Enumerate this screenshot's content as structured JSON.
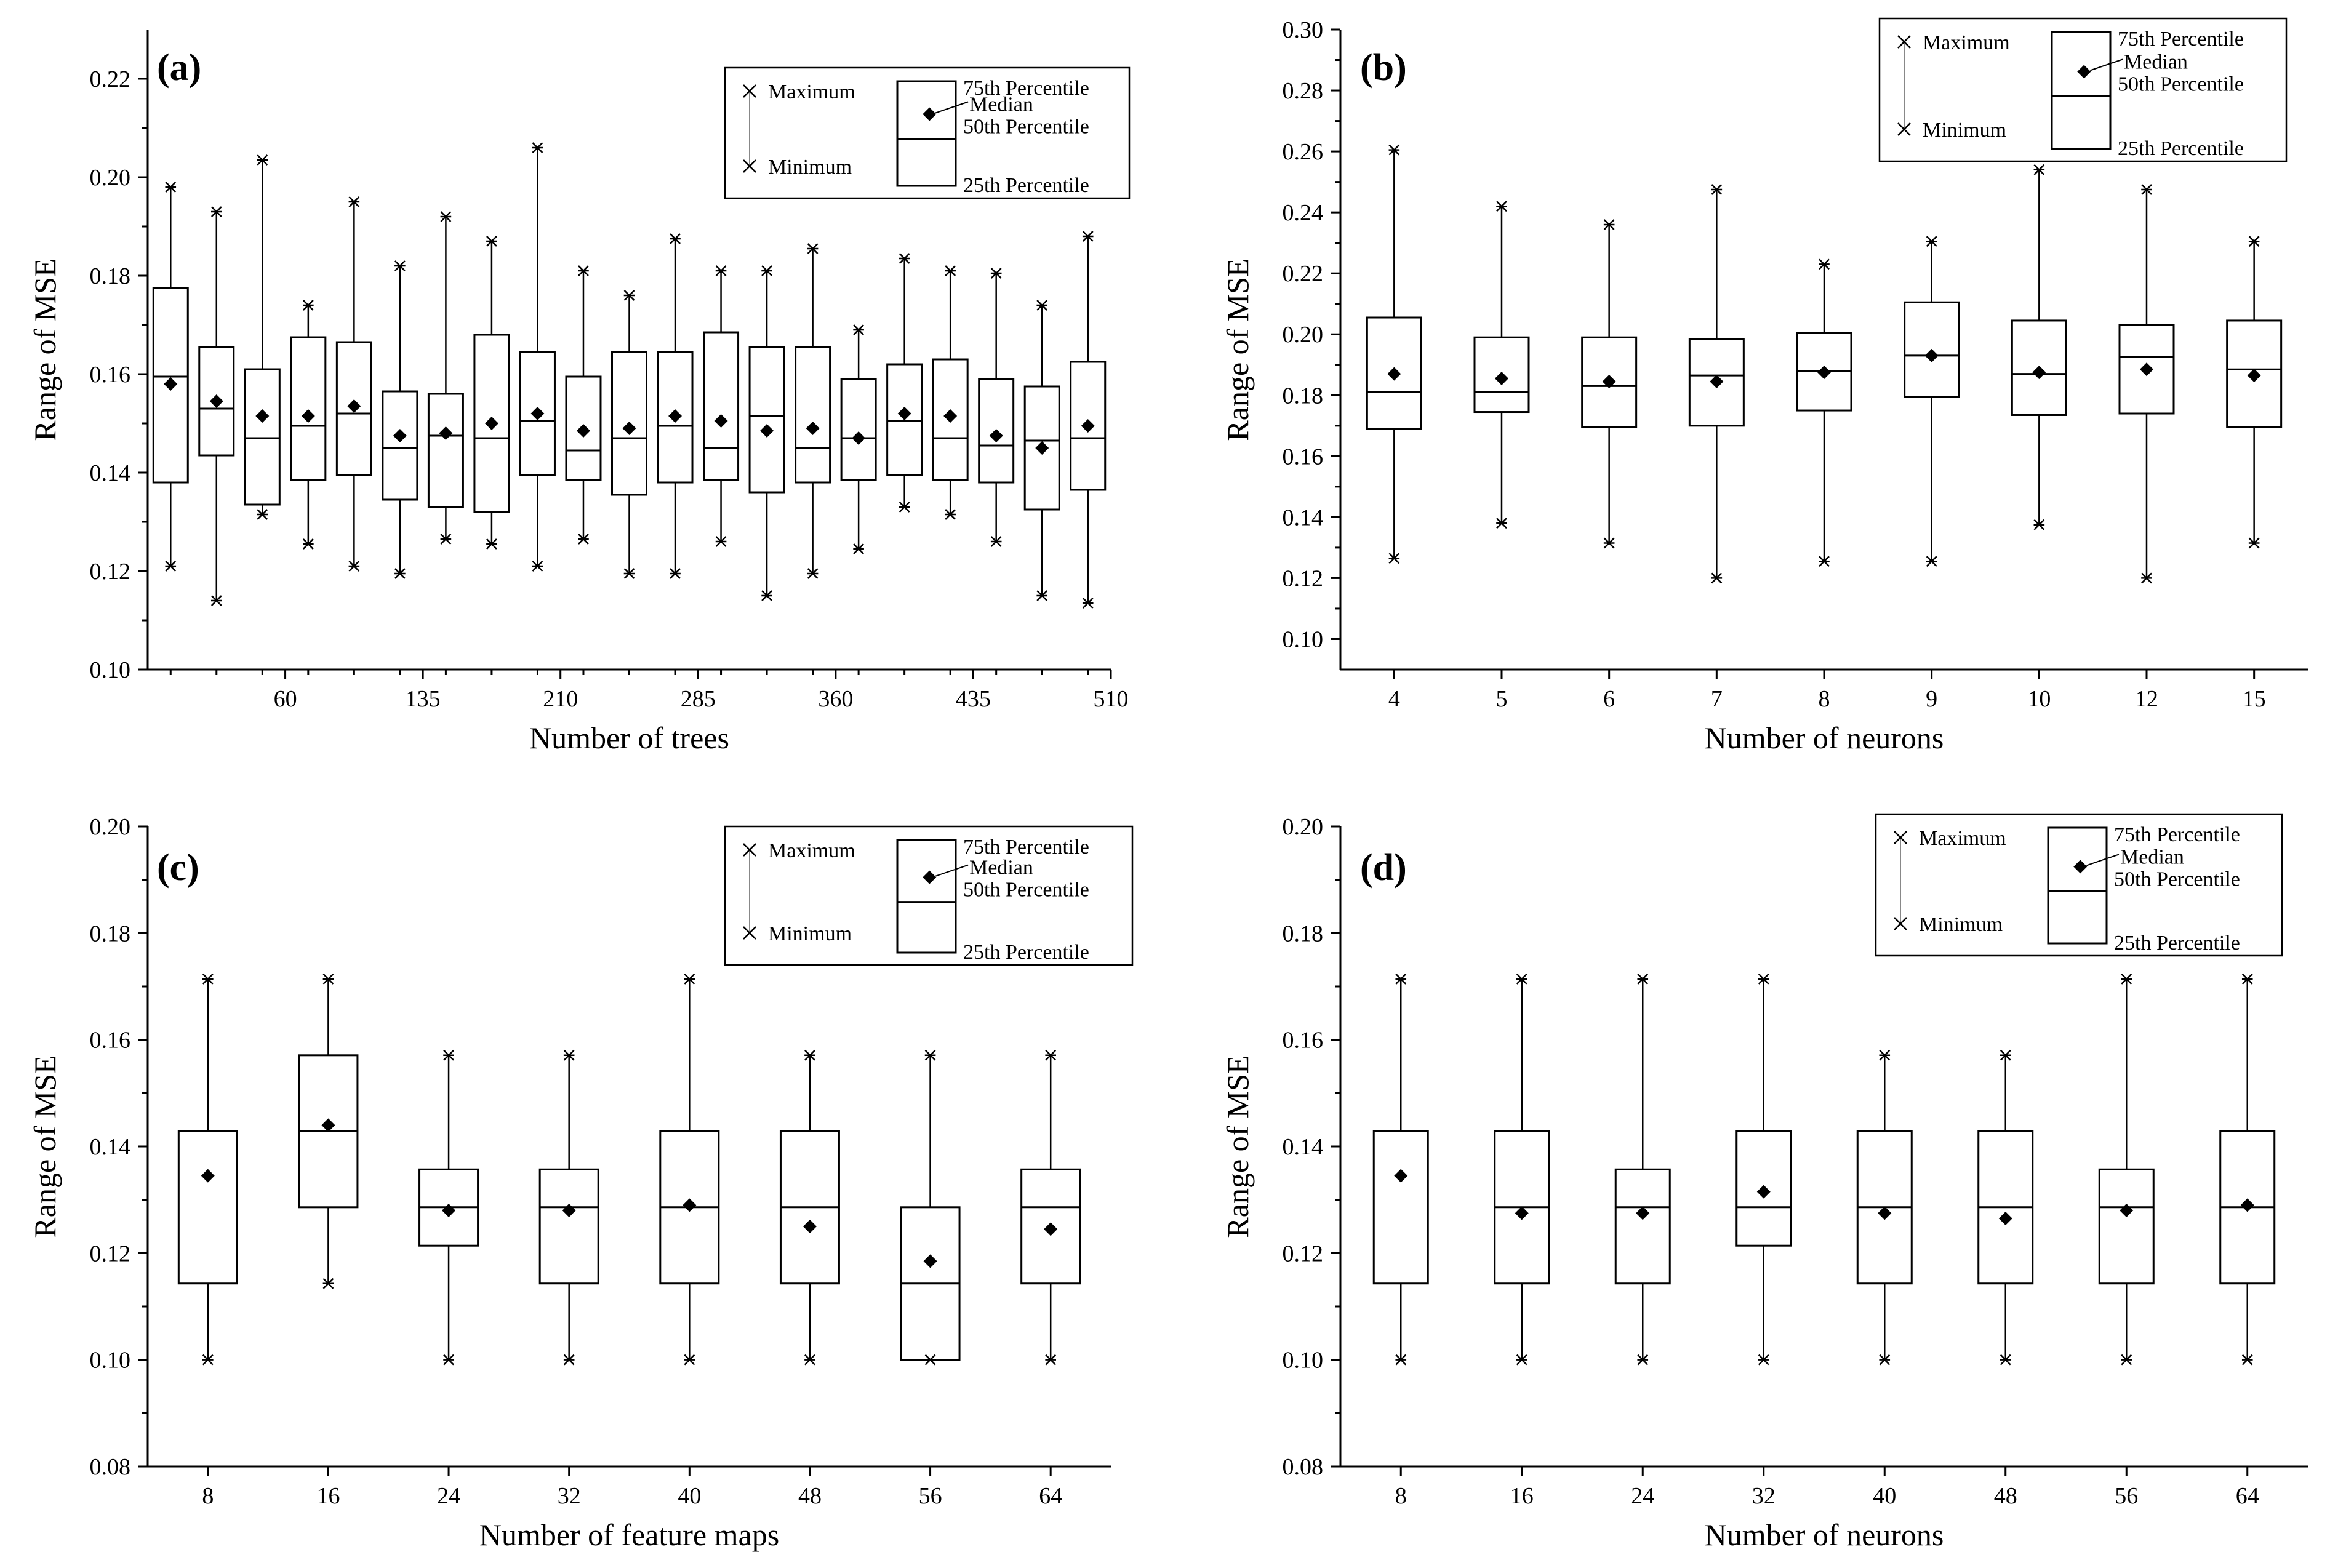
{
  "chart_data": [
    {
      "id": "a",
      "panel_label": "(a)",
      "type": "box",
      "xlabel": "Number of trees",
      "ylabel": "Range of MSE",
      "ylim": [
        0.1,
        0.23
      ],
      "yticks": [
        "0.10",
        "0.12",
        "0.14",
        "0.16",
        "0.18",
        "0.20",
        "0.22"
      ],
      "xtick_labels": [
        {
          "at": 3,
          "label": "60"
        },
        {
          "at": 6,
          "label": "135"
        },
        {
          "at": 9,
          "label": "210"
        },
        {
          "at": 12,
          "label": "285"
        },
        {
          "at": 15,
          "label": "360"
        },
        {
          "at": 18,
          "label": "435"
        },
        {
          "at": 21,
          "label": "510"
        }
      ],
      "boxes": [
        {
          "min": 0.121,
          "q1": 0.138,
          "median": 0.1595,
          "q3": 0.1775,
          "max": 0.198,
          "mean": 0.158
        },
        {
          "min": 0.114,
          "q1": 0.1435,
          "median": 0.153,
          "q3": 0.1655,
          "max": 0.193,
          "mean": 0.1545
        },
        {
          "min": 0.1315,
          "q1": 0.1335,
          "median": 0.147,
          "q3": 0.161,
          "max": 0.2035,
          "mean": 0.1515
        },
        {
          "min": 0.1255,
          "q1": 0.1385,
          "median": 0.1495,
          "q3": 0.1675,
          "max": 0.174,
          "mean": 0.1515
        },
        {
          "min": 0.121,
          "q1": 0.1395,
          "median": 0.152,
          "q3": 0.1665,
          "max": 0.195,
          "mean": 0.1535
        },
        {
          "min": 0.1195,
          "q1": 0.1345,
          "median": 0.145,
          "q3": 0.1565,
          "max": 0.182,
          "mean": 0.1475
        },
        {
          "min": 0.1265,
          "q1": 0.133,
          "median": 0.1475,
          "q3": 0.156,
          "max": 0.192,
          "mean": 0.148
        },
        {
          "min": 0.1255,
          "q1": 0.132,
          "median": 0.147,
          "q3": 0.168,
          "max": 0.187,
          "mean": 0.15
        },
        {
          "min": 0.121,
          "q1": 0.1395,
          "median": 0.1505,
          "q3": 0.1645,
          "max": 0.206,
          "mean": 0.152
        },
        {
          "min": 0.1265,
          "q1": 0.1385,
          "median": 0.1445,
          "q3": 0.1595,
          "max": 0.181,
          "mean": 0.1485
        },
        {
          "min": 0.1195,
          "q1": 0.1355,
          "median": 0.147,
          "q3": 0.1645,
          "max": 0.176,
          "mean": 0.149
        },
        {
          "min": 0.1195,
          "q1": 0.138,
          "median": 0.1495,
          "q3": 0.1645,
          "max": 0.1875,
          "mean": 0.1515
        },
        {
          "min": 0.126,
          "q1": 0.1385,
          "median": 0.145,
          "q3": 0.1685,
          "max": 0.181,
          "mean": 0.1505
        },
        {
          "min": 0.115,
          "q1": 0.136,
          "median": 0.1515,
          "q3": 0.1655,
          "max": 0.181,
          "mean": 0.1485
        },
        {
          "min": 0.1195,
          "q1": 0.138,
          "median": 0.145,
          "q3": 0.1655,
          "max": 0.1855,
          "mean": 0.149
        },
        {
          "min": 0.1245,
          "q1": 0.1385,
          "median": 0.147,
          "q3": 0.159,
          "max": 0.169,
          "mean": 0.147
        },
        {
          "min": 0.133,
          "q1": 0.1395,
          "median": 0.1505,
          "q3": 0.162,
          "max": 0.1835,
          "mean": 0.152
        },
        {
          "min": 0.1315,
          "q1": 0.1385,
          "median": 0.147,
          "q3": 0.163,
          "max": 0.181,
          "mean": 0.1515
        },
        {
          "min": 0.126,
          "q1": 0.138,
          "median": 0.1455,
          "q3": 0.159,
          "max": 0.1805,
          "mean": 0.1475
        },
        {
          "min": 0.115,
          "q1": 0.1325,
          "median": 0.1465,
          "q3": 0.1575,
          "max": 0.174,
          "mean": 0.145
        },
        {
          "min": 0.1135,
          "q1": 0.1365,
          "median": 0.147,
          "q3": 0.1625,
          "max": 0.188,
          "mean": 0.1495
        }
      ],
      "legend": {
        "maximum": "Maximum",
        "minimum": "Minimum",
        "p75": "75th Percentile",
        "median": "Median",
        "p50": "50th Percentile",
        "p25": "25th Percentile"
      }
    },
    {
      "id": "b",
      "panel_label": "(b)",
      "type": "box",
      "xlabel": "Number of neurons",
      "ylabel": "Range of MSE",
      "ylim": [
        0.09,
        0.3
      ],
      "yticks": [
        "0.10",
        "0.12",
        "0.14",
        "0.16",
        "0.18",
        "0.20",
        "0.22",
        "0.24",
        "0.26",
        "0.28",
        "0.30"
      ],
      "categories": [
        "4",
        "5",
        "6",
        "7",
        "8",
        "9",
        "10",
        "12",
        "15"
      ],
      "boxes": [
        {
          "min": 0.1265,
          "q1": 0.169,
          "median": 0.181,
          "q3": 0.2055,
          "max": 0.2605,
          "mean": 0.187
        },
        {
          "min": 0.138,
          "q1": 0.1745,
          "median": 0.181,
          "q3": 0.199,
          "max": 0.242,
          "mean": 0.1855
        },
        {
          "min": 0.1315,
          "q1": 0.1695,
          "median": 0.183,
          "q3": 0.199,
          "max": 0.236,
          "mean": 0.1845
        },
        {
          "min": 0.12,
          "q1": 0.17,
          "median": 0.1865,
          "q3": 0.1985,
          "max": 0.2475,
          "mean": 0.1845
        },
        {
          "min": 0.1255,
          "q1": 0.175,
          "median": 0.188,
          "q3": 0.2005,
          "max": 0.223,
          "mean": 0.1875
        },
        {
          "min": 0.1255,
          "q1": 0.1795,
          "median": 0.193,
          "q3": 0.2105,
          "max": 0.2305,
          "mean": 0.193
        },
        {
          "min": 0.1375,
          "q1": 0.1735,
          "median": 0.187,
          "q3": 0.2045,
          "max": 0.254,
          "mean": 0.1875
        },
        {
          "min": 0.12,
          "q1": 0.174,
          "median": 0.1925,
          "q3": 0.203,
          "max": 0.2475,
          "mean": 0.1885
        },
        {
          "min": 0.1315,
          "q1": 0.1695,
          "median": 0.1885,
          "q3": 0.2045,
          "max": 0.2305,
          "mean": 0.1865
        }
      ],
      "legend": {
        "maximum": "Maximum",
        "minimum": "Minimum",
        "p75": "75th Percentile",
        "median": "Median",
        "p50": "50th Percentile",
        "p25": "25th Percentile"
      }
    },
    {
      "id": "c",
      "panel_label": "(c)",
      "type": "box",
      "xlabel": "Number of feature maps",
      "ylabel": "Range of MSE",
      "ylim": [
        0.08,
        0.2
      ],
      "yticks": [
        "0.08",
        "0.10",
        "0.12",
        "0.14",
        "0.16",
        "0.18",
        "0.20"
      ],
      "categories": [
        "8",
        "16",
        "24",
        "32",
        "40",
        "48",
        "56",
        "64"
      ],
      "boxes": [
        {
          "min": 0.1,
          "q1": 0.1143,
          "median": null,
          "q3": 0.1429,
          "max": 0.1714,
          "mean": 0.1345
        },
        {
          "min": 0.1143,
          "q1": 0.1286,
          "median": 0.1429,
          "q3": 0.1571,
          "max": 0.1714,
          "mean": 0.144
        },
        {
          "min": 0.1,
          "q1": 0.1214,
          "median": 0.1286,
          "q3": 0.1357,
          "max": 0.1571,
          "mean": 0.128
        },
        {
          "min": 0.1,
          "q1": 0.1143,
          "median": 0.1286,
          "q3": 0.1357,
          "max": 0.1571,
          "mean": 0.128
        },
        {
          "min": 0.1,
          "q1": 0.1143,
          "median": 0.1286,
          "q3": 0.1429,
          "max": 0.1714,
          "mean": 0.129
        },
        {
          "min": 0.1,
          "q1": 0.1143,
          "median": 0.1286,
          "q3": 0.1429,
          "max": 0.1571,
          "mean": 0.125
        },
        {
          "min": 0.1,
          "q1": 0.1,
          "median": 0.1143,
          "q3": 0.1286,
          "max": 0.1571,
          "mean": 0.1185
        },
        {
          "min": 0.1,
          "q1": 0.1143,
          "median": 0.1286,
          "q3": 0.1357,
          "max": 0.1571,
          "mean": 0.1245
        }
      ],
      "legend": {
        "maximum": "Maximum",
        "minimum": "Minimum",
        "p75": "75th Percentile",
        "median": "Median",
        "p50": "50th Percentile",
        "p25": "25th Percentile"
      }
    },
    {
      "id": "d",
      "panel_label": "(d)",
      "type": "box",
      "xlabel": "Number of neurons",
      "ylabel": "Range of MSE",
      "ylim": [
        0.08,
        0.2
      ],
      "yticks": [
        "0.08",
        "0.10",
        "0.12",
        "0.14",
        "0.16",
        "0.18",
        "0.20"
      ],
      "categories": [
        "8",
        "16",
        "24",
        "32",
        "40",
        "48",
        "56",
        "64"
      ],
      "boxes": [
        {
          "min": 0.1,
          "q1": 0.1143,
          "median": null,
          "q3": 0.1429,
          "max": 0.1714,
          "mean": 0.1345
        },
        {
          "min": 0.1,
          "q1": 0.1143,
          "median": 0.1286,
          "q3": 0.1429,
          "max": 0.1714,
          "mean": 0.1275
        },
        {
          "min": 0.1,
          "q1": 0.1143,
          "median": 0.1286,
          "q3": 0.1357,
          "max": 0.1714,
          "mean": 0.1275
        },
        {
          "min": 0.1,
          "q1": 0.1214,
          "median": 0.1286,
          "q3": 0.1429,
          "max": 0.1714,
          "mean": 0.1315
        },
        {
          "min": 0.1,
          "q1": 0.1143,
          "median": 0.1286,
          "q3": 0.1429,
          "max": 0.1571,
          "mean": 0.1275
        },
        {
          "min": 0.1,
          "q1": 0.1143,
          "median": 0.1286,
          "q3": 0.1429,
          "max": 0.1571,
          "mean": 0.1265
        },
        {
          "min": 0.1,
          "q1": 0.1143,
          "median": 0.1286,
          "q3": 0.1357,
          "max": 0.1714,
          "mean": 0.128
        },
        {
          "min": 0.1,
          "q1": 0.1143,
          "median": 0.1286,
          "q3": 0.1429,
          "max": 0.1714,
          "mean": 0.129
        }
      ],
      "legend": {
        "maximum": "Maximum",
        "minimum": "Minimum",
        "p75": "75th Percentile",
        "median": "Median",
        "p50": "50th Percentile",
        "p25": "25th Percentile"
      }
    }
  ]
}
